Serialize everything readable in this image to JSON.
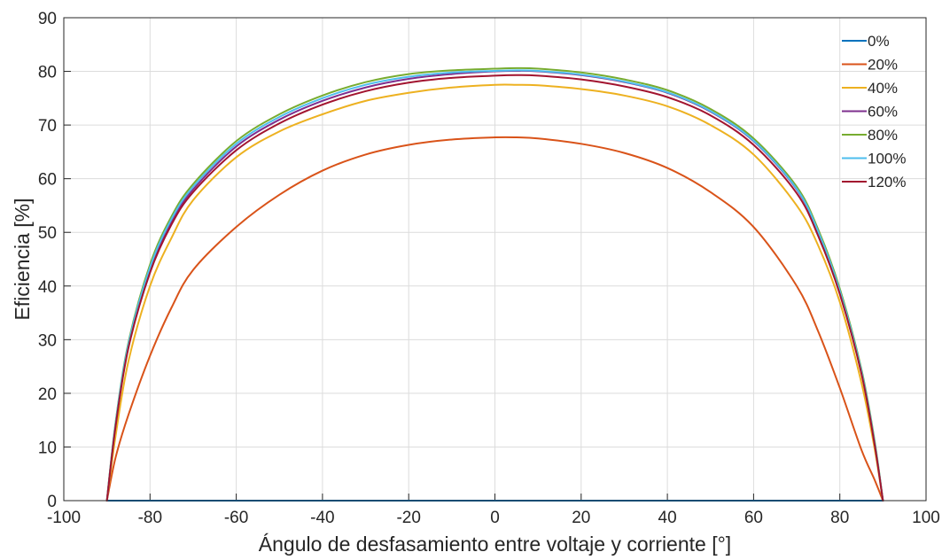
{
  "chart_data": {
    "type": "line",
    "title": "",
    "xlabel": "Ángulo de desfasamiento entre voltaje y corriente [°]",
    "ylabel": "Eficiencia [%]",
    "xlim": [
      -100,
      100
    ],
    "ylim": [
      0,
      90
    ],
    "xticks": [
      "-100",
      "-80",
      "-60",
      "-40",
      "-20",
      "0",
      "20",
      "40",
      "60",
      "80",
      "100"
    ],
    "yticks": [
      "0",
      "10",
      "20",
      "30",
      "40",
      "50",
      "60",
      "70",
      "80",
      "90"
    ],
    "grid": true,
    "legend_position": "top-right",
    "x": [
      -90,
      -88,
      -85,
      -80,
      -75,
      -70,
      -60,
      -50,
      -40,
      -30,
      -20,
      -10,
      0,
      5,
      10,
      20,
      30,
      40,
      50,
      60,
      70,
      75,
      80,
      85,
      88,
      90
    ],
    "series": [
      {
        "name": "0%",
        "color": "#0072BD",
        "values": [
          0,
          0,
          0,
          0,
          0,
          0,
          0,
          0,
          0,
          0,
          0,
          0,
          0,
          0,
          0,
          0,
          0,
          0,
          0,
          0,
          0,
          0,
          0,
          0,
          0,
          0
        ]
      },
      {
        "name": "20%",
        "color": "#D95319",
        "values": [
          0,
          8,
          16,
          27,
          36,
          43,
          51,
          57,
          61.5,
          64.5,
          66.3,
          67.3,
          67.7,
          67.7,
          67.5,
          66.5,
          64.8,
          62,
          57.5,
          51,
          40,
          31.5,
          21,
          9.5,
          4,
          0
        ]
      },
      {
        "name": "40%",
        "color": "#EDB120",
        "values": [
          0,
          12,
          26,
          40,
          49,
          56,
          64,
          68.8,
          72,
          74.5,
          76,
          77,
          77.5,
          77.5,
          77.4,
          76.7,
          75.5,
          73.5,
          70,
          64.5,
          55,
          47.5,
          37,
          22,
          10,
          0
        ]
      },
      {
        "name": "60%",
        "color": "#7E2F8E",
        "values": [
          0,
          14,
          29,
          43,
          52,
          58,
          66,
          71,
          74.5,
          77,
          78.6,
          79.5,
          80,
          80.1,
          80,
          79.3,
          78,
          76,
          72.5,
          67,
          58,
          50,
          39,
          24,
          11,
          0
        ]
      },
      {
        "name": "80%",
        "color": "#77AC30",
        "values": [
          0,
          14.5,
          29.5,
          44,
          53,
          59,
          67,
          72,
          75.5,
          78,
          79.5,
          80.2,
          80.5,
          80.6,
          80.5,
          79.8,
          78.5,
          76.5,
          73,
          67.5,
          58.5,
          50.5,
          39.5,
          24.5,
          11.5,
          0
        ]
      },
      {
        "name": "100%",
        "color": "#4DBEEE",
        "values": [
          0,
          14.3,
          29.2,
          43.5,
          52.5,
          58.5,
          66.5,
          71.5,
          75,
          77.5,
          79,
          79.8,
          80.1,
          80.2,
          80.1,
          79.4,
          78.1,
          76.1,
          72.6,
          67.1,
          58.1,
          50.1,
          39.1,
          24.2,
          11.2,
          0
        ]
      },
      {
        "name": "120%",
        "color": "#A2142F",
        "values": [
          0,
          13.8,
          28.5,
          42.5,
          51.5,
          57.5,
          65.3,
          70.3,
          73.8,
          76.3,
          77.9,
          78.8,
          79.2,
          79.3,
          79.2,
          78.5,
          77.2,
          75.2,
          71.8,
          66.3,
          57.3,
          49.3,
          38.5,
          23.7,
          10.8,
          0
        ]
      }
    ]
  }
}
